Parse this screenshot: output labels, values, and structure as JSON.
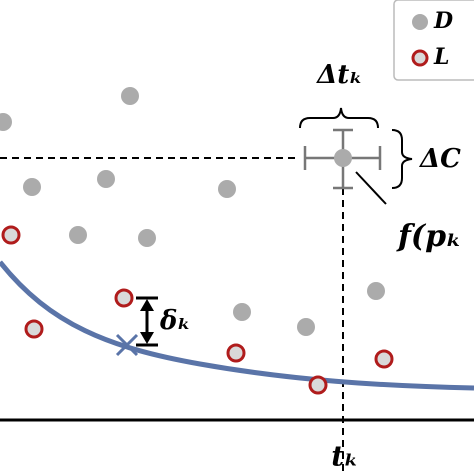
{
  "legend": {
    "items": [
      {
        "label": "D"
      },
      {
        "label": "L"
      }
    ]
  },
  "labels": {
    "delta_t": "Δtₖ",
    "delta_c": "ΔC",
    "f_p": "f(pₖ",
    "delta": "δₖ",
    "t": "tₖ"
  }
}
